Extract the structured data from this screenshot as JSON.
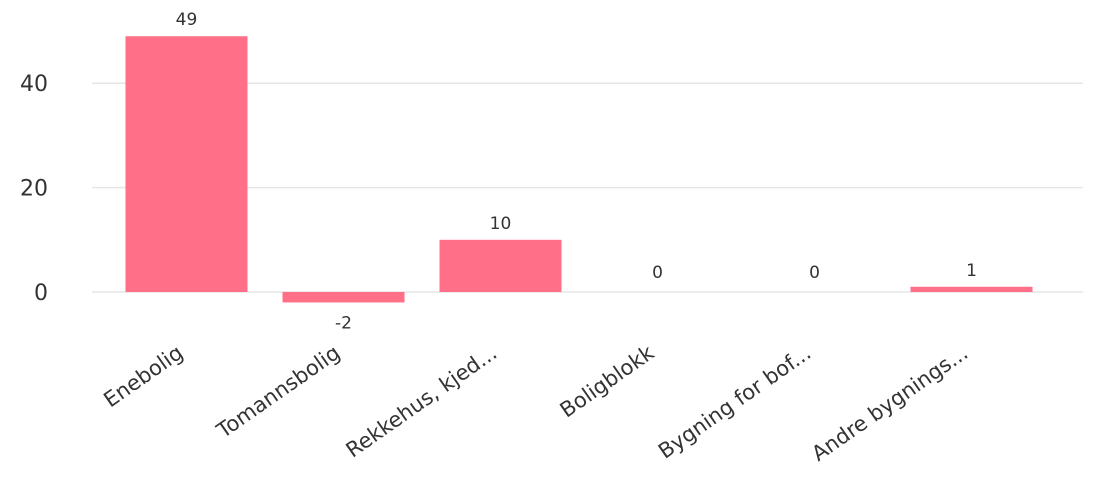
{
  "chart_data": {
    "type": "bar",
    "categories": [
      "Enebolig",
      "Tomannsbolig",
      "Rekkehus, kjed...",
      "Boligblokk",
      "Bygning for bof...",
      "Andre bygnings..."
    ],
    "values": [
      49,
      -2,
      10,
      0,
      0,
      1
    ],
    "data_labels": [
      "49",
      "-2",
      "10",
      "0",
      "0",
      "1"
    ],
    "yticks": [
      0,
      20,
      40
    ],
    "ylim": [
      -6.5,
      52
    ],
    "grid": true,
    "bar_color": "#ff6f87",
    "grid_color": "#e6e6e6",
    "text_color": "#333333"
  }
}
